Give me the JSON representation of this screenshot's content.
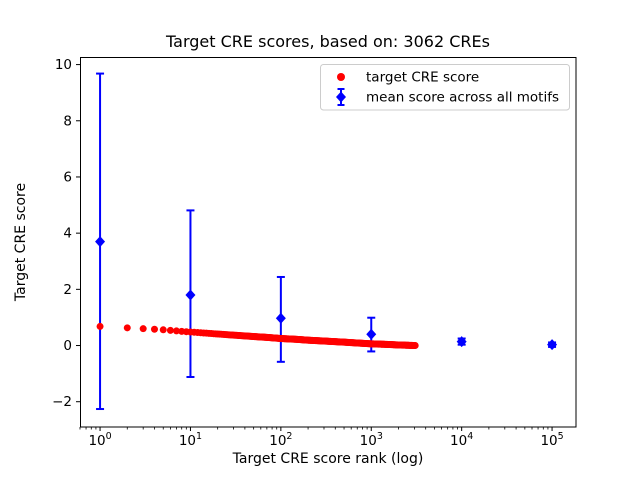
{
  "title": "Target CRE scores, based on: 3062 CREs",
  "colors": {
    "target_series": "#ff0000",
    "mean_series": "#0000ff",
    "frame": "#000000",
    "legend_border": "#cccccc",
    "background": "#ffffff"
  },
  "chart_data": {
    "type": "scatter",
    "title": "Target CRE scores, based on: 3062 CREs",
    "xlabel": "Target CRE score rank (log)",
    "ylabel": "Target CRE score",
    "x_scale": "log",
    "y_scale": "linear",
    "xlim": [
      0.6,
      184000
    ],
    "ylim": [
      -2.9,
      10.27
    ],
    "grid": false,
    "x_ticks": [
      {
        "value": 1,
        "base": "10",
        "exp": "0"
      },
      {
        "value": 10,
        "base": "10",
        "exp": "1"
      },
      {
        "value": 100,
        "base": "10",
        "exp": "2"
      },
      {
        "value": 1000,
        "base": "10",
        "exp": "3"
      },
      {
        "value": 10000,
        "base": "10",
        "exp": "4"
      },
      {
        "value": 100000,
        "base": "10",
        "exp": "5"
      }
    ],
    "y_ticks": [
      {
        "value": -2,
        "label": "−2"
      },
      {
        "value": 0,
        "label": "0"
      },
      {
        "value": 2,
        "label": "2"
      },
      {
        "value": 4,
        "label": "4"
      },
      {
        "value": 6,
        "label": "6"
      },
      {
        "value": 8,
        "label": "8"
      },
      {
        "value": 10,
        "label": "10"
      }
    ],
    "legend": {
      "position": "upper right"
    },
    "series": [
      {
        "name": "target CRE score",
        "type": "scatter",
        "marker": "circle",
        "color": "#ff0000",
        "total_points": 3062,
        "note": "3062 ranked scores, one per CRE; sampled control points below, monotonically decreasing",
        "sample_points": [
          [
            1,
            0.68
          ],
          [
            2,
            0.63
          ],
          [
            3,
            0.6
          ],
          [
            4,
            0.58
          ],
          [
            5,
            0.56
          ],
          [
            7,
            0.52
          ],
          [
            10,
            0.48
          ],
          [
            15,
            0.44
          ],
          [
            20,
            0.41
          ],
          [
            30,
            0.37
          ],
          [
            50,
            0.32
          ],
          [
            70,
            0.29
          ],
          [
            100,
            0.25
          ],
          [
            150,
            0.22
          ],
          [
            200,
            0.19
          ],
          [
            300,
            0.16
          ],
          [
            500,
            0.12
          ],
          [
            700,
            0.09
          ],
          [
            1000,
            0.06
          ],
          [
            1500,
            0.04
          ],
          [
            2000,
            0.02
          ],
          [
            2500,
            0.01
          ],
          [
            3062,
            0.0
          ]
        ]
      },
      {
        "name": "mean score across all motifs",
        "type": "errorbar",
        "marker": "diamond",
        "color": "#0000ff",
        "points": [
          {
            "x": 1,
            "y": 3.7,
            "lo": -2.26,
            "hi": 9.68
          },
          {
            "x": 10,
            "y": 1.8,
            "lo": -1.12,
            "hi": 4.81
          },
          {
            "x": 100,
            "y": 0.97,
            "lo": -0.58,
            "hi": 2.44
          },
          {
            "x": 1000,
            "y": 0.4,
            "lo": -0.21,
            "hi": 0.99
          },
          {
            "x": 10000,
            "y": 0.14,
            "lo": 0.03,
            "hi": 0.25
          },
          {
            "x": 100000,
            "y": 0.03,
            "lo": -0.05,
            "hi": 0.11
          }
        ]
      }
    ]
  }
}
